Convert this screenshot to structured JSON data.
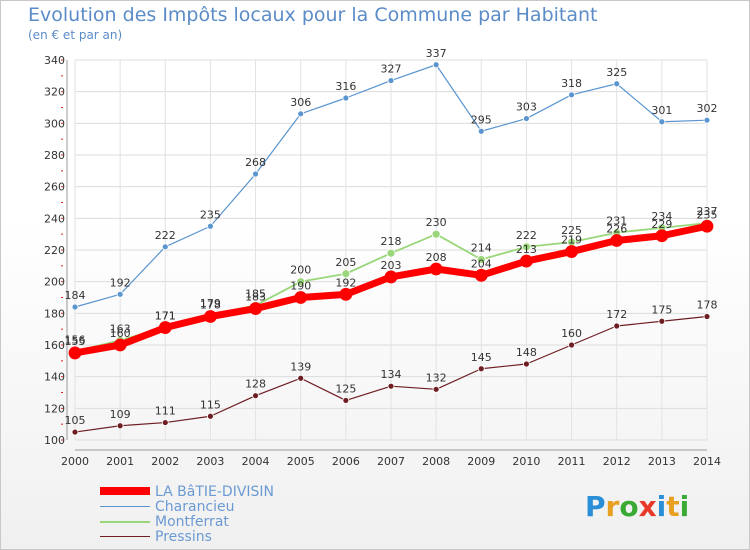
{
  "title": "Evolution des Impôts locaux pour la Commune par Habitant",
  "subtitle": "(en € et par an)",
  "logo": {
    "letters": [
      "P",
      "r",
      "o",
      "x",
      "i",
      "t",
      "i"
    ],
    "colors": [
      "#2a8fd6",
      "#e8a020",
      "#3aaa35",
      "#e83a2a",
      "#2a8fd6",
      "#e8a020",
      "#3aaa35"
    ]
  },
  "chart_data": {
    "type": "line",
    "x": [
      "2000",
      "2001",
      "2002",
      "2003",
      "2004",
      "2005",
      "2006",
      "2007",
      "2008",
      "2009",
      "2010",
      "2011",
      "2012",
      "2013",
      "2014"
    ],
    "ylim": [
      100,
      340
    ],
    "yticks": [
      "100",
      "120",
      "140",
      "160",
      "180",
      "200",
      "220",
      "240",
      "260",
      "280",
      "300",
      "320",
      "340"
    ],
    "grid": true,
    "series": [
      {
        "name": "Pressins",
        "color": "#6e1e22",
        "lw": 1.2,
        "r": 3,
        "values": [
          105,
          109,
          111,
          115,
          128,
          139,
          125,
          134,
          132,
          145,
          148,
          160,
          172,
          175,
          178
        ],
        "labels": true
      },
      {
        "name": "Charancieu",
        "color": "#5a95cf",
        "lw": 1.2,
        "r": 3,
        "values": [
          184,
          192,
          222,
          235,
          268,
          306,
          316,
          327,
          337,
          295,
          303,
          318,
          325,
          301,
          302
        ],
        "labels": true
      },
      {
        "name": "Montferrat",
        "color": "#99d77a",
        "lw": 1.8,
        "r": 4,
        "values": [
          156,
          163,
          171,
          179,
          185,
          200,
          205,
          218,
          230,
          214,
          222,
          225,
          231,
          234,
          237
        ],
        "labels": true
      },
      {
        "name": "LA BâTIE-DIVISIN",
        "color": "#ff0000",
        "lw": 7,
        "r": 6,
        "values": [
          155,
          160,
          171,
          178,
          183,
          190,
          192,
          203,
          208,
          204,
          213,
          219,
          226,
          229,
          235
        ],
        "labels": true
      }
    ]
  }
}
